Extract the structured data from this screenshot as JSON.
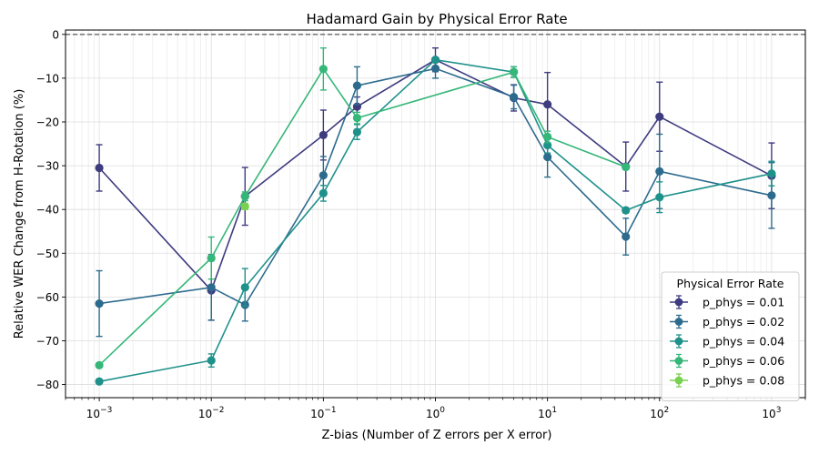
{
  "chart_data": {
    "type": "line",
    "title": "Hadamard Gain by Physical Error Rate",
    "xlabel": "Z-bias (Number of Z errors per X error)",
    "ylabel": "Relative WER Change from H-Rotation (%)",
    "xscale": "log",
    "xlim": [
      0.0005,
      2000
    ],
    "ylim": [
      -83,
      1
    ],
    "grid": true,
    "legend": {
      "title": "Physical Error Rate",
      "placement": "lower right"
    },
    "reference_line": {
      "y": 0,
      "style": "dashed"
    },
    "x_ticks": [
      {
        "value": 0.001,
        "base": "10",
        "exp": "−3"
      },
      {
        "value": 0.01,
        "base": "10",
        "exp": "−2"
      },
      {
        "value": 0.1,
        "base": "10",
        "exp": "−1"
      },
      {
        "value": 1,
        "base": "10",
        "exp": "0"
      },
      {
        "value": 10,
        "base": "10",
        "exp": "1"
      },
      {
        "value": 100,
        "base": "10",
        "exp": "2"
      },
      {
        "value": 1000,
        "base": "10",
        "exp": "3"
      }
    ],
    "y_ticks": [
      {
        "value": 0,
        "label": "0"
      },
      {
        "value": -10,
        "label": "−10"
      },
      {
        "value": -20,
        "label": "−20"
      },
      {
        "value": -30,
        "label": "−30"
      },
      {
        "value": -40,
        "label": "−40"
      },
      {
        "value": -50,
        "label": "−50"
      },
      {
        "value": -60,
        "label": "−60"
      },
      {
        "value": -70,
        "label": "−70"
      },
      {
        "value": -80,
        "label": "−80"
      }
    ],
    "series": [
      {
        "name": "p_phys = 0.01",
        "color": "#3e3b7f",
        "x": [
          0.001,
          0.01,
          0.02,
          0.1,
          0.2,
          1,
          5,
          10,
          50,
          100,
          1000
        ],
        "y": [
          -30.5,
          -58.5,
          -37,
          -23,
          -16.5,
          -5.8,
          -14.5,
          -16,
          -30.2,
          -18.8,
          -32.3
        ],
        "err": [
          5.3,
          6.8,
          6.6,
          5.7,
          2.2,
          2.7,
          3.0,
          7.3,
          5.6,
          7.9,
          7.5
        ]
      },
      {
        "name": "p_phys = 0.02",
        "color": "#2d6b8e",
        "x": [
          0.001,
          0.01,
          0.02,
          0.1,
          0.2,
          1,
          5,
          10,
          50,
          100,
          1000
        ],
        "y": [
          -61.5,
          -57.8,
          -61.8,
          -32.2,
          -11.7,
          -7.8,
          -14.3,
          -28,
          -46.2,
          -31.3,
          -36.8
        ],
        "err": [
          7.5,
          7.5,
          3.7,
          4.3,
          4.3,
          2.2,
          2.7,
          4.6,
          4.2,
          8.5,
          7.5
        ]
      },
      {
        "name": "p_phys = 0.04",
        "color": "#1f918b",
        "x": [
          0.001,
          0.01,
          0.02,
          0.1,
          0.2,
          1,
          5,
          10,
          50,
          100,
          1000
        ],
        "y": [
          -79.3,
          -74.5,
          -57.8,
          -36.3,
          -22.3,
          -5.8,
          -8.6,
          -25.3,
          -40.2,
          -37.2,
          -31.8
        ],
        "err": [
          0.5,
          1.5,
          4.3,
          1.8,
          1.7,
          0.5,
          1.2,
          1.8,
          0.6,
          3.5,
          2.8
        ]
      },
      {
        "name": "p_phys = 0.06",
        "color": "#35b779",
        "x": [
          0.001,
          0.01,
          0.02,
          0.1,
          0.2,
          5,
          10,
          50
        ],
        "y": [
          -75.6,
          -51.1,
          -37,
          -7.9,
          -19.1,
          -8.6,
          -23.4,
          -30.3
        ],
        "err": [
          0.5,
          4.8,
          1.0,
          4.8,
          1.3,
          1.2,
          1.3,
          0.6
        ]
      },
      {
        "name": "p_phys = 0.08",
        "color": "#7ad151",
        "x": [
          0.02
        ],
        "y": [
          -39.3
        ],
        "err": [
          0.7
        ]
      }
    ]
  }
}
